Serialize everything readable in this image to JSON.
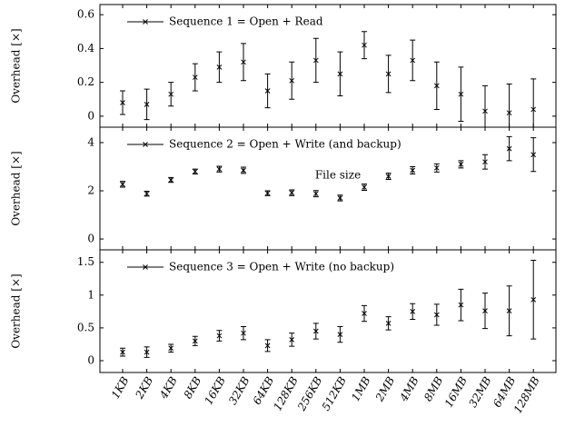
{
  "chart_data": [
    {
      "type": "errorbar",
      "ylabel": "Overhead [×]",
      "series": [
        {
          "name": "Sequence 1 = Open + Read",
          "color": "#000000",
          "values": [
            0.08,
            0.07,
            0.13,
            0.23,
            0.29,
            0.32,
            0.15,
            0.21,
            0.33,
            0.25,
            0.42,
            0.25,
            0.33,
            0.18,
            0.13,
            0.03,
            0.02,
            0.04
          ],
          "errors": [
            0.07,
            0.09,
            0.07,
            0.08,
            0.09,
            0.11,
            0.1,
            0.11,
            0.13,
            0.13,
            0.08,
            0.11,
            0.12,
            0.14,
            0.16,
            0.15,
            0.17,
            0.18
          ]
        }
      ],
      "ylim": [
        -0.065,
        0.66
      ],
      "yticks": [
        0,
        0.2,
        0.4,
        0.6
      ],
      "legend": "upper left"
    },
    {
      "type": "errorbar",
      "ylabel": "Overhead [×]",
      "series": [
        {
          "name": "Sequence 2 = Open + Write (and backup)",
          "color": "#000000",
          "values": [
            2.27,
            1.88,
            2.45,
            2.8,
            2.9,
            2.85,
            1.9,
            1.92,
            1.88,
            1.7,
            2.15,
            2.6,
            2.85,
            2.95,
            3.1,
            3.2,
            3.75,
            3.5
          ],
          "errors": [
            0.12,
            0.1,
            0.1,
            0.1,
            0.12,
            0.13,
            0.1,
            0.12,
            0.13,
            0.12,
            0.13,
            0.13,
            0.15,
            0.17,
            0.15,
            0.3,
            0.5,
            0.7
          ]
        }
      ],
      "ylim": [
        -0.45,
        4.64
      ],
      "yticks": [
        0,
        2,
        4
      ],
      "legend": "upper left"
    },
    {
      "type": "errorbar",
      "ylabel": "Overhead [×]",
      "xlabel": "File size",
      "categories": [
        "1KB",
        "2KB",
        "4KB",
        "8KB",
        "16KB",
        "32KB",
        "64KB",
        "128KB",
        "256KB",
        "512KB",
        "1MB",
        "2MB",
        "4MB",
        "8MB",
        "16MB",
        "32MB",
        "64MB",
        "128MB"
      ],
      "series": [
        {
          "name": "Sequence 3 = Open + Write (no backup)",
          "color": "#000000",
          "values": [
            0.13,
            0.13,
            0.19,
            0.3,
            0.38,
            0.42,
            0.23,
            0.32,
            0.45,
            0.4,
            0.72,
            0.57,
            0.75,
            0.7,
            0.85,
            0.76,
            0.76,
            0.93
          ],
          "errors": [
            0.06,
            0.08,
            0.06,
            0.07,
            0.08,
            0.1,
            0.09,
            0.1,
            0.12,
            0.12,
            0.12,
            0.1,
            0.12,
            0.16,
            0.24,
            0.27,
            0.38,
            0.6
          ]
        }
      ],
      "ylim": [
        -0.18,
        1.69
      ],
      "yticks": [
        0,
        0.5,
        1,
        1.5
      ],
      "legend": "upper left"
    }
  ]
}
